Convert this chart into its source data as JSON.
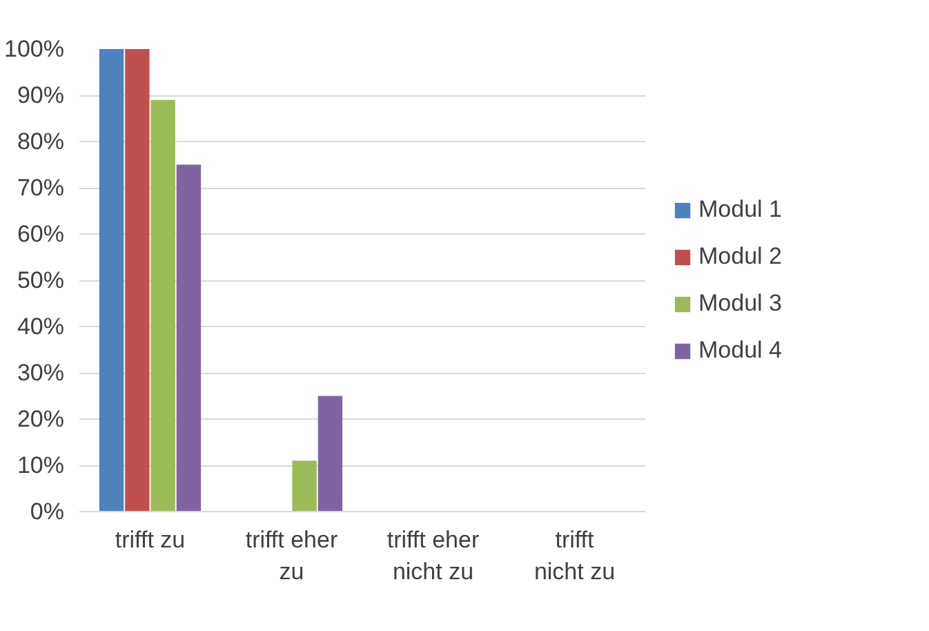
{
  "chart_data": {
    "type": "bar",
    "categories": [
      "trifft zu",
      "trifft eher zu",
      "trifft eher nicht zu",
      "trifft nicht zu"
    ],
    "series": [
      {
        "name": "Modul 1",
        "color": "#4f81bd",
        "values": [
          100,
          0,
          0,
          0
        ]
      },
      {
        "name": "Modul 2",
        "color": "#c0504d",
        "values": [
          100,
          0,
          0,
          0
        ]
      },
      {
        "name": "Modul 3",
        "color": "#9bbb59",
        "values": [
          89,
          11,
          0,
          0
        ]
      },
      {
        "name": "Modul 4",
        "color": "#8064a2",
        "values": [
          75,
          25,
          0,
          0
        ]
      }
    ],
    "ylim": [
      0,
      100
    ],
    "yticks": [
      {
        "value": 0,
        "label": "0%"
      },
      {
        "value": 10,
        "label": "10%"
      },
      {
        "value": 20,
        "label": "20%"
      },
      {
        "value": 30,
        "label": "30%"
      },
      {
        "value": 40,
        "label": "40%"
      },
      {
        "value": 50,
        "label": "50%"
      },
      {
        "value": 60,
        "label": "60%"
      },
      {
        "value": 70,
        "label": "70%"
      },
      {
        "value": 80,
        "label": "80%"
      },
      {
        "value": 90,
        "label": "90%"
      },
      {
        "value": 100,
        "label": "100%"
      }
    ],
    "grid": "y",
    "legend": "right"
  }
}
